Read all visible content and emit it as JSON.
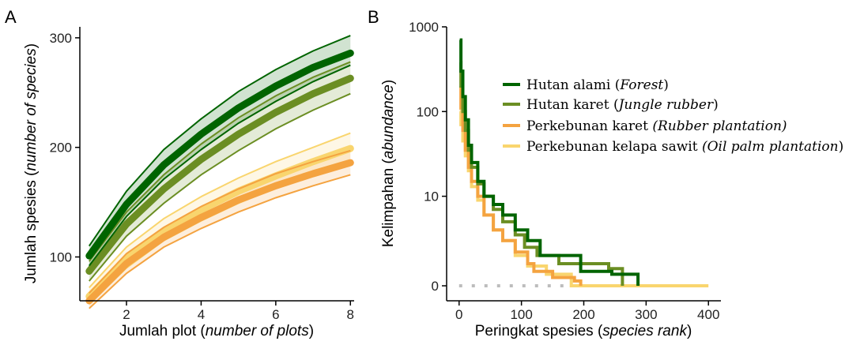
{
  "panels": {
    "a": {
      "label": "A",
      "ylabel_main": "Jumlah spesies (",
      "ylabel_italic": "number of species",
      "ylabel_end": ")",
      "xlabel_main": "Jumlah plot (",
      "xlabel_italic": "number of plots",
      "xlabel_end": ")"
    },
    "b": {
      "label": "B",
      "ylabel_main": "Kelimpahan (",
      "ylabel_italic": "abundance",
      "ylabel_end": ")",
      "xlabel_main": "Peringkat spesies (",
      "xlabel_italic": "species rank",
      "xlabel_end": ")",
      "zero_line_color": "#bdbdbd"
    }
  },
  "legend": [
    {
      "main": "Hutan alami (",
      "italic": "Forest",
      "end": ")",
      "color": "#006400"
    },
    {
      "main": "Hutan karet (",
      "italic": "Jungle rubber",
      "end": ")",
      "color": "#6b8e23"
    },
    {
      "main": "Perkebunan karet ",
      "italic": "(Rubber plantation)",
      "end": "",
      "color": "#f4a340"
    },
    {
      "main": "Perkebunan kelapa sawit ",
      "italic": "(Oil palm plantation",
      "end": ")",
      "color": "#f9d56e"
    }
  ],
  "chart_data": [
    {
      "type": "line",
      "panel": "A",
      "xlabel": "Jumlah plot (number of plots)",
      "ylabel": "Jumlah spesies (number of species)",
      "xlim": [
        0.75,
        8.1
      ],
      "ylim": [
        60,
        310
      ],
      "xticks": [
        2,
        4,
        6,
        8
      ],
      "yticks": [
        100,
        200,
        300
      ],
      "x": [
        1,
        2,
        3,
        4,
        5,
        6,
        7,
        8
      ],
      "series": [
        {
          "name": "Hutan alami (Forest)",
          "color": "#006400",
          "values": [
            101,
            148,
            184,
            212,
            236,
            256,
            273,
            286
          ],
          "lower": [
            92,
            137,
            171,
            198,
            222,
            242,
            260,
            275
          ],
          "upper": [
            110,
            160,
            198,
            226,
            251,
            271,
            288,
            302
          ]
        },
        {
          "name": "Hutan karet (Jungle rubber)",
          "color": "#6b8e23",
          "values": [
            87,
            130,
            162,
            189,
            212,
            232,
            249,
            263
          ],
          "lower": [
            78,
            119,
            149,
            175,
            197,
            217,
            234,
            249
          ],
          "upper": [
            96,
            141,
            175,
            203,
            227,
            247,
            264,
            278
          ]
        },
        {
          "name": "Perkebunan karet (Rubber plantation)",
          "color": "#f4a340",
          "values": [
            60,
            94,
            118,
            136,
            152,
            165,
            176,
            186
          ],
          "lower": [
            53,
            85,
            109,
            126,
            141,
            154,
            165,
            175
          ],
          "upper": [
            67,
            103,
            127,
            146,
            162,
            176,
            187,
            197
          ]
        },
        {
          "name": "Perkebunan kelapa sawit (Oil palm plantation)",
          "color": "#f9d56e",
          "values": [
            64,
            99,
            124,
            143,
            160,
            174,
            187,
            199
          ],
          "lower": [
            57,
            90,
            115,
            133,
            149,
            163,
            175,
            186
          ],
          "upper": [
            72,
            109,
            135,
            155,
            172,
            187,
            200,
            213
          ]
        }
      ]
    },
    {
      "type": "line",
      "panel": "B",
      "xlabel": "Peringkat spesies (species rank)",
      "ylabel": "Kelimpahan (abundance)",
      "xlim": [
        -20,
        420
      ],
      "ylim": [
        0,
        1000
      ],
      "yscale": "log",
      "xticks": [
        0,
        100,
        200,
        300,
        400
      ],
      "yticks": [
        0,
        10,
        100,
        1000
      ],
      "series": [
        {
          "name": "Hutan alami (Forest)",
          "color": "#006400",
          "x": [
            1,
            3,
            6,
            10,
            15,
            20,
            30,
            40,
            55,
            70,
            90,
            110,
            130,
            155,
            195,
            245,
            287,
            287
          ],
          "values": [
            700,
            300,
            150,
            80,
            40,
            25,
            15,
            10,
            8,
            6,
            4,
            3,
            2,
            2,
            1.3,
            1.2,
            1.2,
            0
          ]
        },
        {
          "name": "Hutan karet (Jungle rubber)",
          "color": "#6b8e23",
          "x": [
            1,
            3,
            6,
            10,
            15,
            20,
            30,
            40,
            55,
            70,
            90,
            105,
            125,
            160,
            200,
            240,
            262,
            262
          ],
          "values": [
            380,
            200,
            100,
            60,
            35,
            22,
            14,
            10,
            7,
            5,
            3.5,
            2.5,
            2,
            1.6,
            1.6,
            1.4,
            1.2,
            0
          ]
        },
        {
          "name": "Perkebunan karet (Rubber plantation)",
          "color": "#f4a340",
          "x": [
            1,
            3,
            6,
            10,
            15,
            20,
            30,
            40,
            55,
            70,
            90,
            110,
            120,
            150,
            185,
            195,
            195
          ],
          "values": [
            200,
            110,
            60,
            35,
            22,
            15,
            10,
            6,
            4,
            3,
            2.2,
            1.6,
            1.3,
            1.1,
            1,
            1,
            0
          ]
        },
        {
          "name": "Perkebunan kelapa sawit (Oil palm plantation)",
          "color": "#f9d56e",
          "x": [
            1,
            3,
            6,
            10,
            15,
            20,
            30,
            40,
            55,
            70,
            90,
            110,
            140,
            180,
            180,
            400
          ],
          "values": [
            100,
            70,
            45,
            30,
            20,
            13,
            9,
            6,
            4,
            3,
            2,
            1.5,
            1.2,
            1,
            0,
            0
          ]
        }
      ]
    }
  ]
}
